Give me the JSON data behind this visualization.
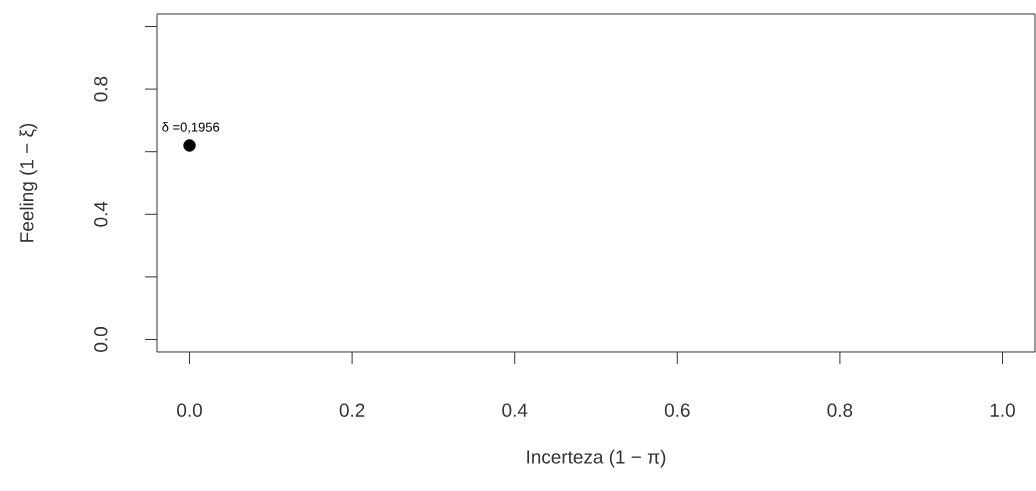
{
  "chart_data": {
    "type": "scatter",
    "xlabel": "Incerteza (1 − π)",
    "ylabel": "Feeling (1 − ξ)",
    "x": [
      0
    ],
    "values": [
      0.62
    ],
    "color": "#000000",
    "marker": "circle",
    "annotations": [
      {
        "text": "δ =0,1956",
        "x": 0,
        "y": 0.62
      }
    ],
    "xlim": [
      -0.04,
      1.04
    ],
    "ylim": [
      -0.04,
      1.04
    ],
    "xticks": [
      {
        "value": 0,
        "label": "0.0"
      },
      0.2,
      0.4,
      0.6,
      0.8,
      {
        "value": 1,
        "label": "1.0"
      }
    ],
    "yticks": [
      {
        "value": 0,
        "label": "0.0"
      },
      {
        "value": 0.2,
        "label": null
      },
      0.4,
      {
        "value": 0.6,
        "label": null
      },
      0.8,
      {
        "value": 1,
        "label": null
      }
    ],
    "grid": false
  }
}
